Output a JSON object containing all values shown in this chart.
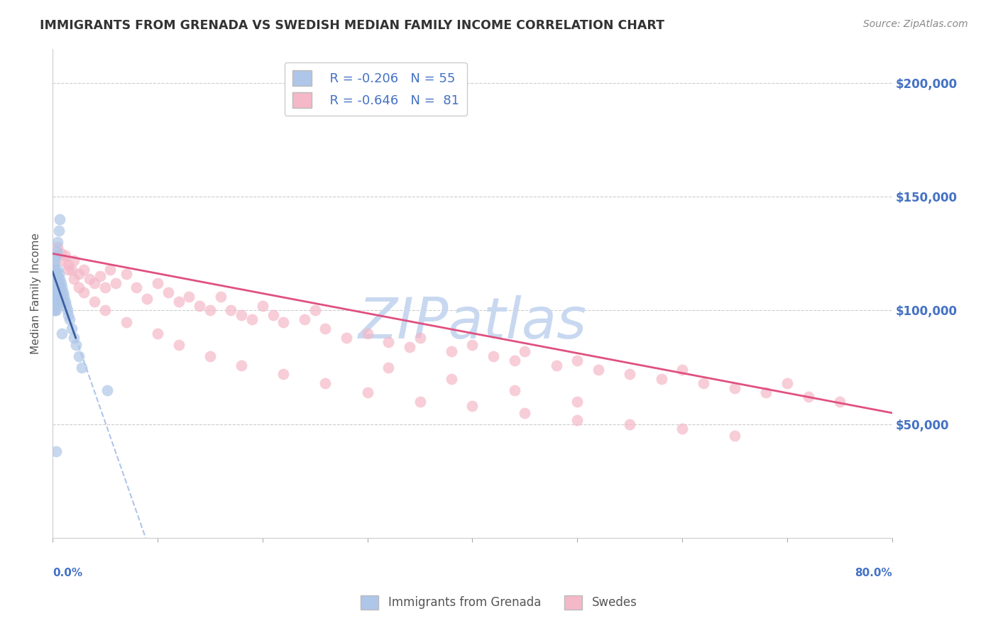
{
  "title": "IMMIGRANTS FROM GRENADA VS SWEDISH MEDIAN FAMILY INCOME CORRELATION CHART",
  "source": "Source: ZipAtlas.com",
  "ylabel": "Median Family Income",
  "ytick_labels": [
    "$200,000",
    "$150,000",
    "$100,000",
    "$50,000"
  ],
  "ytick_values": [
    200000,
    150000,
    100000,
    50000
  ],
  "ymin": 0,
  "ymax": 215000,
  "xmin": 0.0,
  "xmax": 0.8,
  "legend_color1": "#aec6e8",
  "legend_color2": "#f4b8c8",
  "scatter_color_blue": "#aec6e8",
  "scatter_color_pink": "#f4b8c8",
  "trendline_color_blue": "#3a5fa0",
  "trendline_color_pink": "#e05080",
  "trendline_dashed_color": "#aec6e8",
  "watermark": "ZIPatlas",
  "watermark_color": "#c8d8f0",
  "blue_R": -0.206,
  "blue_N": 55,
  "pink_R": -0.646,
  "pink_N": 81,
  "blue_scatter_x": [
    0.001,
    0.001,
    0.001,
    0.001,
    0.002,
    0.002,
    0.002,
    0.002,
    0.002,
    0.003,
    0.003,
    0.003,
    0.003,
    0.003,
    0.004,
    0.004,
    0.004,
    0.004,
    0.005,
    0.005,
    0.005,
    0.005,
    0.006,
    0.006,
    0.006,
    0.007,
    0.007,
    0.007,
    0.008,
    0.008,
    0.009,
    0.009,
    0.01,
    0.01,
    0.011,
    0.012,
    0.013,
    0.014,
    0.015,
    0.016,
    0.018,
    0.02,
    0.022,
    0.025,
    0.028,
    0.001,
    0.002,
    0.003,
    0.004,
    0.005,
    0.006,
    0.007,
    0.009,
    0.052,
    0.003
  ],
  "blue_scatter_y": [
    115000,
    110000,
    105000,
    100000,
    118000,
    112000,
    108000,
    104000,
    100000,
    116000,
    112000,
    108000,
    104000,
    100000,
    114000,
    110000,
    106000,
    102000,
    118000,
    114000,
    108000,
    104000,
    116000,
    112000,
    108000,
    114000,
    110000,
    106000,
    112000,
    108000,
    110000,
    106000,
    108000,
    104000,
    106000,
    104000,
    102000,
    100000,
    98000,
    96000,
    92000,
    88000,
    85000,
    80000,
    75000,
    120000,
    122000,
    124000,
    126000,
    130000,
    135000,
    140000,
    90000,
    65000,
    38000
  ],
  "pink_scatter_x": [
    0.005,
    0.008,
    0.01,
    0.012,
    0.015,
    0.018,
    0.02,
    0.025,
    0.03,
    0.035,
    0.04,
    0.045,
    0.05,
    0.055,
    0.06,
    0.07,
    0.08,
    0.09,
    0.1,
    0.11,
    0.12,
    0.13,
    0.14,
    0.15,
    0.16,
    0.17,
    0.18,
    0.19,
    0.2,
    0.21,
    0.22,
    0.24,
    0.25,
    0.26,
    0.28,
    0.3,
    0.32,
    0.34,
    0.35,
    0.38,
    0.4,
    0.42,
    0.44,
    0.45,
    0.48,
    0.5,
    0.52,
    0.55,
    0.58,
    0.6,
    0.62,
    0.65,
    0.68,
    0.7,
    0.72,
    0.75,
    0.015,
    0.02,
    0.025,
    0.03,
    0.04,
    0.05,
    0.07,
    0.1,
    0.12,
    0.15,
    0.18,
    0.22,
    0.26,
    0.3,
    0.35,
    0.4,
    0.45,
    0.5,
    0.55,
    0.6,
    0.65,
    0.32,
    0.38,
    0.44,
    0.5
  ],
  "pink_scatter_y": [
    128000,
    125000,
    122000,
    124000,
    120000,
    118000,
    122000,
    116000,
    118000,
    114000,
    112000,
    115000,
    110000,
    118000,
    112000,
    116000,
    110000,
    105000,
    112000,
    108000,
    104000,
    106000,
    102000,
    100000,
    106000,
    100000,
    98000,
    96000,
    102000,
    98000,
    95000,
    96000,
    100000,
    92000,
    88000,
    90000,
    86000,
    84000,
    88000,
    82000,
    85000,
    80000,
    78000,
    82000,
    76000,
    78000,
    74000,
    72000,
    70000,
    74000,
    68000,
    66000,
    64000,
    68000,
    62000,
    60000,
    118000,
    114000,
    110000,
    108000,
    104000,
    100000,
    95000,
    90000,
    85000,
    80000,
    76000,
    72000,
    68000,
    64000,
    60000,
    58000,
    55000,
    52000,
    50000,
    48000,
    45000,
    75000,
    70000,
    65000,
    60000
  ]
}
